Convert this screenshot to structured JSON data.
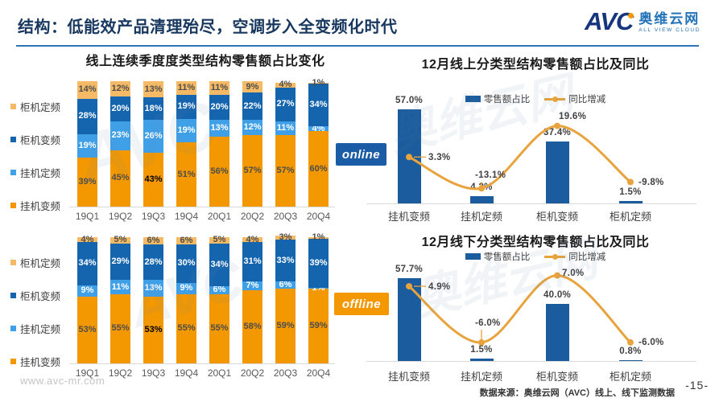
{
  "header": {
    "title": "结构：低能效产品清理殆尽，空调步入全变频化时代"
  },
  "logo": {
    "abbr": "AVC",
    "name": "奥维云网",
    "tagline": "ALL VIEW CLOUD"
  },
  "badges": {
    "online": "online",
    "offline": "offline"
  },
  "watermark": {
    "abbr": "AVC",
    "brand": "奥维云网"
  },
  "footer": {
    "website": "www.avc-mr.com",
    "source": "数据来源：奥维云网（AVC）线上、线下监测数据",
    "page": "-15-"
  },
  "colors": {
    "orange": "#F39801",
    "tan": "#F4BA66",
    "light_blue": "#3FA0E8",
    "dark_blue": "#1565AE",
    "combo_bar_blue": "#1A5C9E",
    "line_orange": "#E8A33C",
    "title_navy": "#17375E",
    "divider_blue": "#2E74B5"
  },
  "chart_data": [
    {
      "id": "online-quarterly-stacked",
      "type": "bar",
      "stacked": true,
      "title": "线上连续季度度类型结构零售额占比变化",
      "categories": [
        "19Q1",
        "19Q2",
        "19Q3",
        "19Q4",
        "20Q1",
        "20Q2",
        "20Q3",
        "20Q4"
      ],
      "unit": "%",
      "ylim": [
        0,
        100
      ],
      "series": [
        {
          "name": "挂机变频",
          "color": "#F39801",
          "label_style": "dark",
          "values": [
            39,
            45,
            43,
            51,
            56,
            57,
            57,
            60
          ]
        },
        {
          "name": "挂机定频",
          "color": "#3FA0E8",
          "label_style": "white",
          "values": [
            19,
            23,
            26,
            19,
            13,
            12,
            11,
            4
          ]
        },
        {
          "name": "柜机变频",
          "color": "#1565AE",
          "label_style": "white",
          "values": [
            28,
            20,
            18,
            19,
            20,
            22,
            27,
            34
          ]
        },
        {
          "name": "柜机定频",
          "color": "#F4BA66",
          "label_style": "dark",
          "values": [
            14,
            12,
            13,
            11,
            11,
            9,
            4,
            1
          ]
        }
      ],
      "legend_order": "reversed",
      "emphasis": {
        "series_index": 0,
        "category_index": 2
      }
    },
    {
      "id": "december-online-combo",
      "type": "bar+line",
      "title": "12月线上分类型结构零售额占比及同比",
      "categories": [
        "挂机变频",
        "挂机定频",
        "柜机变频",
        "柜机定频"
      ],
      "bar_series": {
        "name": "零售额占比",
        "color": "#1A5C9E",
        "values": [
          57.0,
          4.2,
          37.4,
          1.5
        ],
        "labels": [
          "57.0%",
          "4.2%",
          "37.4%",
          "1.5%"
        ]
      },
      "line_series": {
        "name": "同比增减",
        "color": "#E8A33C",
        "values": [
          3.3,
          -13.1,
          19.6,
          -9.8
        ],
        "labels": [
          "3.3%",
          "-13.1%",
          "19.6%",
          "-9.8%"
        ]
      },
      "bar_ylim": [
        0,
        65
      ],
      "line_ylim": [
        -21,
        35
      ],
      "legend_position": "top"
    },
    {
      "id": "offline-quarterly-stacked",
      "type": "bar",
      "stacked": true,
      "title": "",
      "categories": [
        "19Q1",
        "19Q2",
        "19Q3",
        "19Q4",
        "20Q1",
        "20Q2",
        "20Q3",
        "20Q4"
      ],
      "unit": "%",
      "ylim": [
        0,
        100
      ],
      "series": [
        {
          "name": "挂机变频",
          "color": "#F39801",
          "label_style": "dark",
          "values": [
            53,
            55,
            53,
            55,
            55,
            58,
            59,
            59
          ]
        },
        {
          "name": "挂机定频",
          "color": "#3FA0E8",
          "label_style": "white",
          "values": [
            9,
            11,
            13,
            9,
            6,
            7,
            6,
            1
          ]
        },
        {
          "name": "柜机变频",
          "color": "#1565AE",
          "label_style": "white",
          "values": [
            34,
            29,
            28,
            30,
            34,
            31,
            33,
            39
          ]
        },
        {
          "name": "柜机定频",
          "color": "#F4BA66",
          "label_style": "dark",
          "values": [
            4,
            5,
            6,
            6,
            5,
            4,
            3,
            1
          ]
        }
      ],
      "legend_order": "reversed",
      "emphasis": {
        "series_index": 0,
        "category_index": 2
      }
    },
    {
      "id": "december-offline-combo",
      "type": "bar+line",
      "title": "12月线下分类型结构零售额占比及同比",
      "categories": [
        "挂机变频",
        "挂机定频",
        "柜机变频",
        "柜机定频"
      ],
      "bar_series": {
        "name": "零售额占比",
        "color": "#1A5C9E",
        "values": [
          57.7,
          1.5,
          40.0,
          0.8
        ],
        "labels": [
          "57.7%",
          "1.5%",
          "40.0%",
          "0.8%"
        ]
      },
      "line_series": {
        "name": "同比增减",
        "color": "#E8A33C",
        "values": [
          4.9,
          -6.0,
          7.0,
          -6.0
        ],
        "labels": [
          "4.9%",
          "-6.0%",
          "7.0%",
          "-6.0%"
        ]
      },
      "bar_ylim": [
        0,
        65
      ],
      "line_ylim": [
        -9.6,
        8.5
      ],
      "legend_position": "top"
    }
  ]
}
